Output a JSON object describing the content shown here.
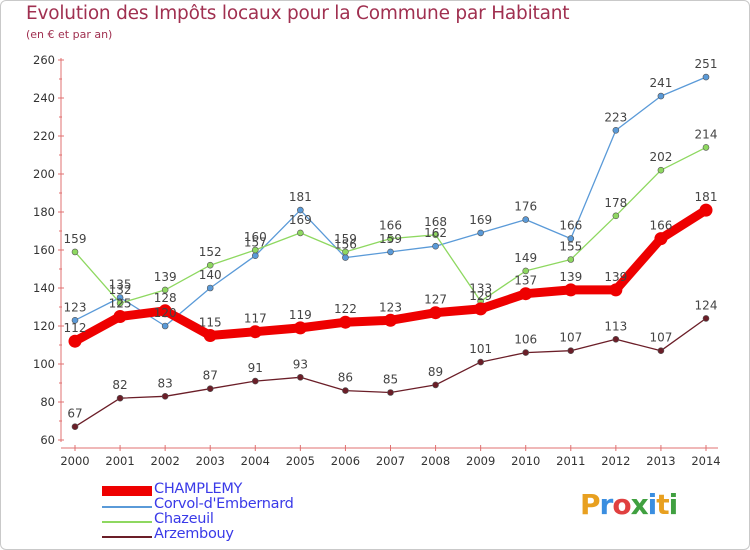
{
  "title": "Evolution des Impôts locaux pour la Commune par Habitant",
  "subtitle": "(en € et par an)",
  "logo": {
    "letters": [
      "P",
      "r",
      "o",
      "x",
      "i",
      "t",
      "i"
    ],
    "colors": [
      "#e8a020",
      "#3a8ee0",
      "#e04040",
      "#40a040",
      "#3a8ee0",
      "#e8a020",
      "#40a040"
    ]
  },
  "chart_data": {
    "type": "line",
    "x": [
      "2000",
      "2001",
      "2002",
      "2003",
      "2004",
      "2005",
      "2006",
      "2007",
      "2008",
      "2009",
      "2010",
      "2011",
      "2012",
      "2013",
      "2014"
    ],
    "ylim": [
      60,
      260
    ],
    "yticks": [
      "60",
      "80",
      "100",
      "120",
      "140",
      "160",
      "180",
      "200",
      "220",
      "240",
      "260"
    ],
    "grid": false,
    "legend_position": "bottom-left",
    "series": [
      {
        "name": "Corvol-d'Embernard",
        "color": "#5a9ad8",
        "values": [
          123,
          135,
          120,
          140,
          157,
          181,
          156,
          159,
          162,
          169,
          176,
          166,
          223,
          241,
          251
        ]
      },
      {
        "name": "Chazeuil",
        "color": "#8ed860",
        "values": [
          159,
          132,
          139,
          152,
          160,
          169,
          159,
          166,
          168,
          133,
          149,
          155,
          178,
          202,
          214
        ]
      },
      {
        "name": "Arzembouy",
        "color": "#6b1e28",
        "values": [
          67,
          82,
          83,
          87,
          91,
          93,
          86,
          85,
          89,
          101,
          106,
          107,
          113,
          107,
          124
        ]
      },
      {
        "name": "CHAMPLEMY",
        "color": "#ee0000",
        "values": [
          112,
          125,
          128,
          115,
          117,
          119,
          122,
          123,
          127,
          129,
          137,
          139,
          139,
          166,
          181
        ]
      }
    ]
  }
}
